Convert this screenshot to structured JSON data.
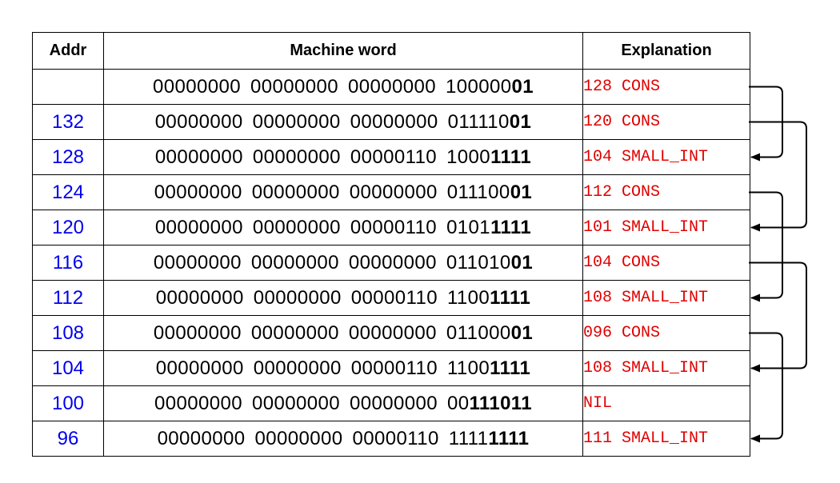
{
  "headers": {
    "addr": "Addr",
    "word": "Machine word",
    "expl": "Explanation"
  },
  "rows": [
    {
      "addr": "",
      "bytes": [
        "00000000",
        "00000000",
        "00000000"
      ],
      "last_lo": "100000",
      "last_hi": "01",
      "expl": "128 CONS"
    },
    {
      "addr": "132",
      "bytes": [
        "00000000",
        "00000000",
        "00000000"
      ],
      "last_lo": "011110",
      "last_hi": "01",
      "expl": "120 CONS"
    },
    {
      "addr": "128",
      "bytes": [
        "00000000",
        "00000000",
        "00000110"
      ],
      "last_lo": "1000",
      "last_hi": "1111",
      "expl": "104 SMALL_INT"
    },
    {
      "addr": "124",
      "bytes": [
        "00000000",
        "00000000",
        "00000000"
      ],
      "last_lo": "011100",
      "last_hi": "01",
      "expl": "112 CONS"
    },
    {
      "addr": "120",
      "bytes": [
        "00000000",
        "00000000",
        "00000110"
      ],
      "last_lo": "0101",
      "last_hi": "1111",
      "expl": "101 SMALL_INT"
    },
    {
      "addr": "116",
      "bytes": [
        "00000000",
        "00000000",
        "00000000"
      ],
      "last_lo": "011010",
      "last_hi": "01",
      "expl": "104 CONS"
    },
    {
      "addr": "112",
      "bytes": [
        "00000000",
        "00000000",
        "00000110"
      ],
      "last_lo": "1100",
      "last_hi": "1111",
      "expl": "108 SMALL_INT"
    },
    {
      "addr": "108",
      "bytes": [
        "00000000",
        "00000000",
        "00000000"
      ],
      "last_lo": "011000",
      "last_hi": "01",
      "expl": "096 CONS"
    },
    {
      "addr": "104",
      "bytes": [
        "00000000",
        "00000000",
        "00000110"
      ],
      "last_lo": "1100",
      "last_hi": "1111",
      "expl": "108 SMALL_INT"
    },
    {
      "addr": "100",
      "bytes": [
        "00000000",
        "00000000",
        "00000000"
      ],
      "last_lo": "00",
      "last_hi": "111011",
      "expl": "NIL"
    },
    {
      "addr": "96",
      "bytes": [
        "00000000",
        "00000000",
        "00000110"
      ],
      "last_lo": "1111",
      "last_hi": "1111",
      "expl": "111 SMALL_INT"
    }
  ],
  "pointers": [
    {
      "from": 0,
      "to": 2
    },
    {
      "from": 1,
      "to": 4
    },
    {
      "from": 3,
      "to": 6
    },
    {
      "from": 5,
      "to": 8
    },
    {
      "from": 7,
      "to": 10
    }
  ],
  "colors": {
    "addr": "#0000ee",
    "explanation": "#e00000",
    "lines": "#000000"
  }
}
